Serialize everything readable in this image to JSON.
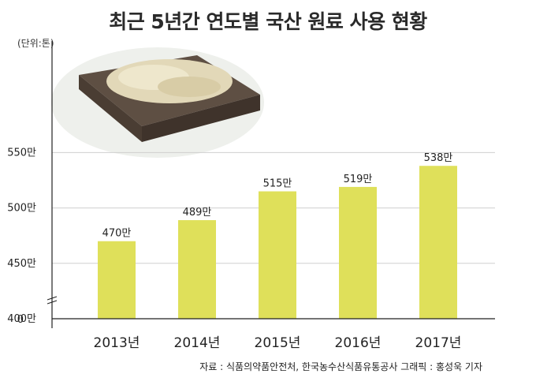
{
  "header": {
    "title": "최근 5년간 연도별 국산 원료 사용 현황",
    "unit": "(단위:톤)"
  },
  "footer": {
    "source": "자료 : 식품의약품안전처, 한국농수산식품유통공사 그래픽 : 홍성욱 기자"
  },
  "colors": {
    "bar": "#dfe05a",
    "grid": "#cfcfcf",
    "axis": "#222222"
  },
  "illustration": "bowl-of-dried-herb-slices",
  "chart_data": {
    "type": "bar",
    "categories": [
      "2013년",
      "2014년",
      "2015년",
      "2016년",
      "2017년"
    ],
    "values": [
      470,
      489,
      515,
      519,
      538
    ],
    "value_labels": [
      "470만",
      "489만",
      "515만",
      "519만",
      "538만"
    ],
    "y_ticks": [
      {
        "value": 400,
        "label": "400만"
      },
      {
        "value": 450,
        "label": "450만"
      },
      {
        "value": 500,
        "label": "500만"
      },
      {
        "value": 550,
        "label": "550만"
      }
    ],
    "y_origin_label": "0",
    "y_axis_break": true,
    "ylim": [
      350,
      560
    ],
    "grid": true
  }
}
